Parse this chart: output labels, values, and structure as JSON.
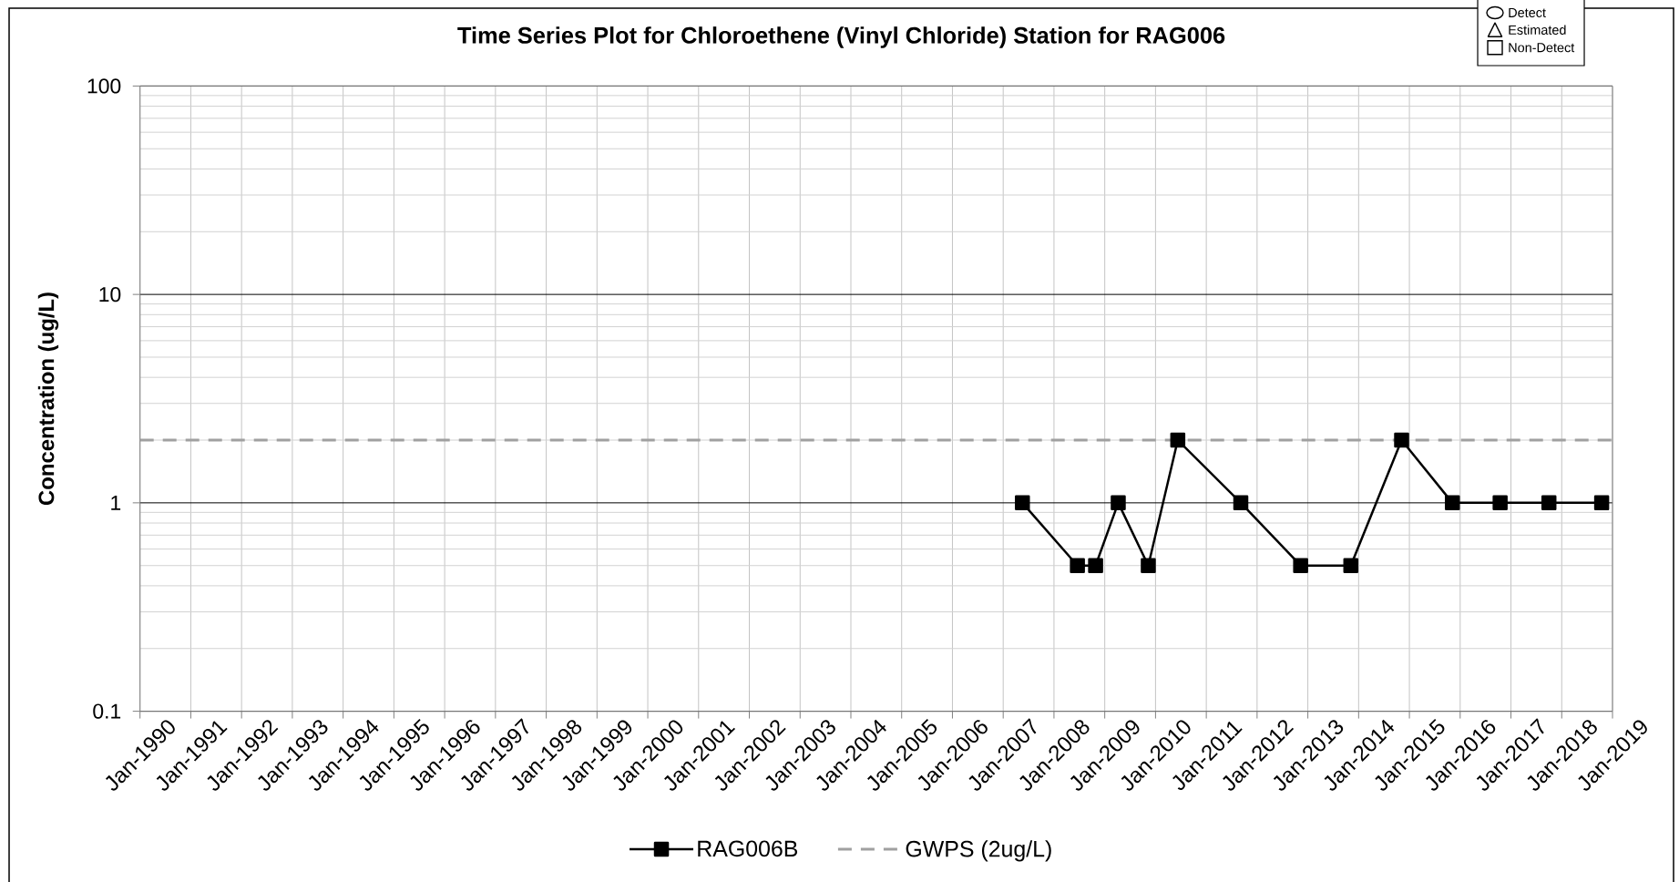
{
  "chart_data": {
    "type": "line",
    "title": "Time Series Plot for Chloroethene (Vinyl Chloride) Station for RAG006",
    "ylabel": "Concentration (ug/L)",
    "annotations": [
      "Detect",
      "Estimated",
      "Non-Detect"
    ],
    "series": [
      {
        "name": "RAG006B",
        "color": "#000000",
        "x": [
          "2007-05-19",
          "2008-06-18",
          "2008-10-27",
          "2009-04-08",
          "2009-11-10",
          "2010-06-10",
          "2011-09-06",
          "2012-11-10",
          "2013-11-06",
          "2014-11-06",
          "2015-11-06",
          "2016-10-15",
          "2017-10-01",
          "2018-10-15"
        ],
        "values": [
          1,
          0.5,
          0.5,
          1,
          0.5,
          2,
          1,
          0.5,
          0.5,
          2,
          1,
          1,
          1,
          1
        ]
      }
    ],
    "marker": "square",
    "line_style": "solid",
    "xlim": [
      "1990-01",
      "2019-01"
    ],
    "xticks": [
      {
        "value": "1990-01",
        "label": "Jan-1990"
      },
      {
        "value": "1991-01",
        "label": "Jan-1991"
      },
      {
        "value": "1992-01",
        "label": "Jan-1992"
      },
      {
        "value": "1993-01",
        "label": "Jan-1993"
      },
      {
        "value": "1994-01",
        "label": "Jan-1994"
      },
      {
        "value": "1995-01",
        "label": "Jan-1995"
      },
      {
        "value": "1996-01",
        "label": "Jan-1996"
      },
      {
        "value": "1997-01",
        "label": "Jan-1997"
      },
      {
        "value": "1998-01",
        "label": "Jan-1998"
      },
      {
        "value": "1999-01",
        "label": "Jan-1999"
      },
      {
        "value": "2000-01",
        "label": "Jan-2000"
      },
      {
        "value": "2001-01",
        "label": "Jan-2001"
      },
      {
        "value": "2002-01",
        "label": "Jan-2002"
      },
      {
        "value": "2003-01",
        "label": "Jan-2003"
      },
      {
        "value": "2004-01",
        "label": "Jan-2004"
      },
      {
        "value": "2005-01",
        "label": "Jan-2005"
      },
      {
        "value": "2006-01",
        "label": "Jan-2006"
      },
      {
        "value": "2007-01",
        "label": "Jan-2007"
      },
      {
        "value": "2008-01",
        "label": "Jan-2008"
      },
      {
        "value": "2009-01",
        "label": "Jan-2009"
      },
      {
        "value": "2010-01",
        "label": "Jan-2010"
      },
      {
        "value": "2011-01",
        "label": "Jan-2011"
      },
      {
        "value": "2012-01",
        "label": "Jan-2012"
      },
      {
        "value": "2013-01",
        "label": "Jan-2013"
      },
      {
        "value": "2014-01",
        "label": "Jan-2014"
      },
      {
        "value": "2015-01",
        "label": "Jan-2015"
      },
      {
        "value": "2016-01",
        "label": "Jan-2016"
      },
      {
        "value": "2017-01",
        "label": "Jan-2017"
      },
      {
        "value": "2018-01",
        "label": "Jan-2018"
      },
      {
        "value": "2019-01",
        "label": "Jan-2019"
      }
    ],
    "ylim": [
      0.1,
      100
    ],
    "yticks": [
      0.1,
      1,
      10,
      100
    ],
    "log": "y",
    "grid": true,
    "legend": "bottom",
    "ref_lines": [
      {
        "axis": "y",
        "value": 2,
        "label": "GWPS (2ug/L)",
        "color": "#a0a0a0",
        "line_style": "dashed"
      }
    ]
  }
}
